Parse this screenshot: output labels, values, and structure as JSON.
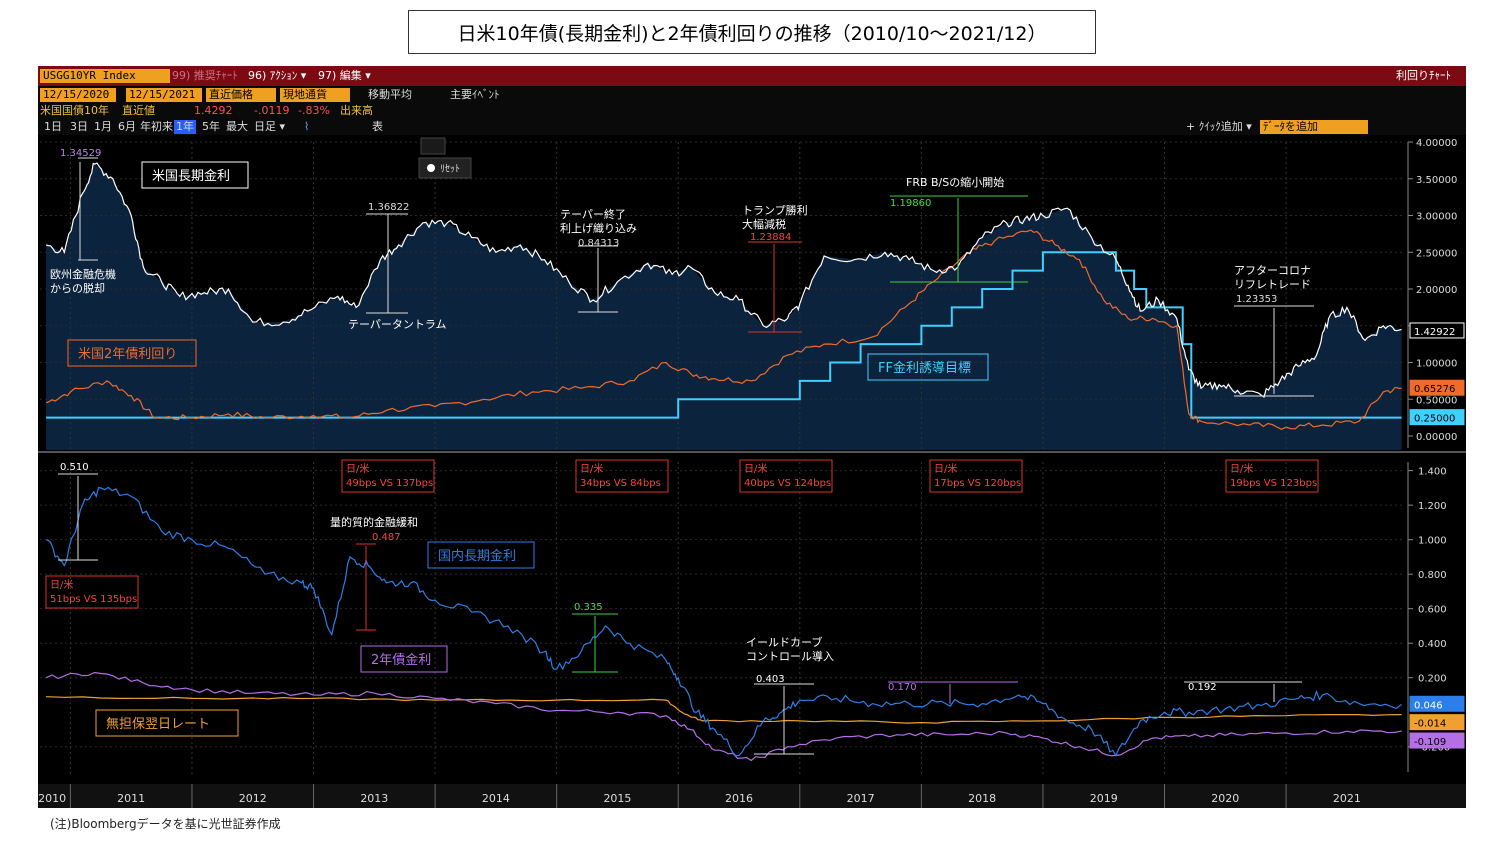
{
  "title": "日米10年債(長期金利)と2年債利回りの推移（2010/10～2021/12）",
  "footnote": "(注)Bloombergデータを基に光世証券作成",
  "toolbar": {
    "ticker": "USGG10YR Index",
    "menu1": "99) 推奨ﾁｬｰﾄ",
    "menu2": "96) ｱｸｼｮﾝ ▾",
    "menu3": "97) 編集 ▾",
    "right_title": "利回りﾁｬｰﾄ",
    "date_from": "12/15/2020",
    "date_to": "12/15/2021",
    "price_type": "直近価格",
    "currency": "現地通貨",
    "ma_label": "移動平均",
    "event_label": "主要ｲﾍﾞﾝﾄ",
    "sec_name": "米国国債10年",
    "last_label": "直近値",
    "last_value": "1.4292",
    "change": "-.0119",
    "change_pct": "-.83%",
    "volume_label": "出来高",
    "periods": [
      "1日",
      "3日",
      "1月",
      "6月",
      "年初来",
      "1年",
      "5年",
      "最大",
      "日足 ▾"
    ],
    "table_label": "表",
    "add_study": "+ ｸｲｯｸ追加 ▾",
    "add_data": "ﾃﾞｰﾀを追加",
    "reset": "ﾘｾｯﾄ"
  },
  "colors": {
    "us10": "#ffffff",
    "us2": "#f06a2a",
    "ff": "#3fd0ff",
    "jp10": "#2c7fe8",
    "jp2": "#b46ee6",
    "tona": "#f0a030",
    "bar": "#7b0a12",
    "area": "#0d2540"
  },
  "chart_data": [
    {
      "type": "line",
      "panel": "top",
      "ylim": [
        0,
        4
      ],
      "yticks": [
        "4.00000",
        "3.50000",
        "3.00000",
        "2.50000",
        "2.00000",
        "1.50000",
        "1.00000",
        "0.50000",
        "0.00000"
      ],
      "x_labels": [
        "2010",
        "2011",
        "2012",
        "2013",
        "2014",
        "2015",
        "2016",
        "2017",
        "2018",
        "2019",
        "2020",
        "2021"
      ],
      "series": [
        {
          "name": "米国長期金利",
          "color": "#ffffff",
          "x": [
            2010.8,
            2010.95,
            2011.1,
            2011.2,
            2011.35,
            2011.5,
            2011.6,
            2011.75,
            2011.9,
            2012.1,
            2012.3,
            2012.5,
            2012.75,
            2012.95,
            2013.2,
            2013.35,
            2013.55,
            2013.7,
            2013.9,
            2014.1,
            2014.3,
            2014.5,
            2014.7,
            2014.9,
            2015.1,
            2015.3,
            2015.5,
            2015.75,
            2015.95,
            2016.1,
            2016.3,
            2016.5,
            2016.7,
            2016.9,
            2017.0,
            2017.2,
            2017.45,
            2017.7,
            2017.9,
            2018.1,
            2018.3,
            2018.5,
            2018.7,
            2018.85,
            2019.0,
            2019.2,
            2019.4,
            2019.6,
            2019.7,
            2019.8,
            2019.95,
            2020.1,
            2020.2,
            2020.3,
            2020.45,
            2020.6,
            2020.8,
            2020.95,
            2021.1,
            2021.25,
            2021.35,
            2021.5,
            2021.65,
            2021.8,
            2021.95
          ],
          "y": [
            2.6,
            2.5,
            3.3,
            3.7,
            3.5,
            3.0,
            2.3,
            2.1,
            1.9,
            1.95,
            2.0,
            1.55,
            1.55,
            1.7,
            1.9,
            1.75,
            2.4,
            2.6,
            2.9,
            2.9,
            2.7,
            2.5,
            2.6,
            2.4,
            2.1,
            1.85,
            2.1,
            2.35,
            2.2,
            2.3,
            1.95,
            1.85,
            1.5,
            1.6,
            1.8,
            2.45,
            2.4,
            2.5,
            2.4,
            2.25,
            2.3,
            2.7,
            2.9,
            2.95,
            3.0,
            3.1,
            2.7,
            2.4,
            2.05,
            1.7,
            1.85,
            1.6,
            0.9,
            0.65,
            0.7,
            0.62,
            0.55,
            0.75,
            0.95,
            1.1,
            1.6,
            1.75,
            1.3,
            1.5,
            1.45
          ]
        },
        {
          "name": "米国2年債利回り",
          "color": "#f06a2a",
          "x": [
            2010.8,
            2011.0,
            2011.3,
            2011.5,
            2011.7,
            2012.0,
            2012.3,
            2012.6,
            2013.0,
            2013.3,
            2013.6,
            2014.0,
            2014.4,
            2014.8,
            2015.2,
            2015.6,
            2015.9,
            2016.1,
            2016.3,
            2016.6,
            2016.9,
            2017.2,
            2017.6,
            2017.9,
            2018.1,
            2018.4,
            2018.6,
            2018.9,
            2019.1,
            2019.3,
            2019.5,
            2019.7,
            2019.9,
            2020.1,
            2020.2,
            2020.3,
            2020.7,
            2021.0,
            2021.3,
            2021.6,
            2021.8,
            2021.95
          ],
          "y": [
            0.45,
            0.6,
            0.75,
            0.55,
            0.25,
            0.25,
            0.3,
            0.25,
            0.28,
            0.25,
            0.35,
            0.4,
            0.5,
            0.6,
            0.65,
            0.75,
            1.0,
            0.85,
            0.78,
            0.75,
            1.1,
            1.25,
            1.35,
            1.8,
            2.1,
            2.5,
            2.65,
            2.8,
            2.6,
            2.4,
            1.85,
            1.6,
            1.6,
            1.5,
            0.3,
            0.2,
            0.15,
            0.12,
            0.15,
            0.2,
            0.6,
            0.65
          ]
        },
        {
          "name": "FF金利誘導目標",
          "color": "#3fd0ff",
          "x": [
            2010.8,
            2016.0,
            2016.0,
            2017.0,
            2017.0,
            2017.25,
            2017.25,
            2017.5,
            2017.5,
            2018.0,
            2018.0,
            2018.25,
            2018.25,
            2018.5,
            2018.5,
            2018.75,
            2018.75,
            2019.0,
            2019.0,
            2019.6,
            2019.6,
            2019.75,
            2019.75,
            2019.85,
            2019.85,
            2020.15,
            2020.15,
            2020.22,
            2020.22,
            2021.95
          ],
          "y": [
            0.25,
            0.25,
            0.5,
            0.5,
            0.75,
            0.75,
            1.0,
            1.0,
            1.25,
            1.25,
            1.5,
            1.5,
            1.75,
            1.75,
            2.0,
            2.0,
            2.25,
            2.25,
            2.5,
            2.5,
            2.25,
            2.25,
            2.0,
            2.0,
            1.75,
            1.75,
            1.25,
            1.25,
            0.25,
            0.25
          ]
        }
      ]
    },
    {
      "type": "line",
      "panel": "bottom",
      "ylim": [
        -0.3,
        1.45
      ],
      "yticks": [
        "1.400",
        "1.200",
        "1.000",
        "0.800",
        "0.600",
        "0.400",
        "0.200",
        "-0.200"
      ],
      "series": [
        {
          "name": "国内長期金利",
          "color": "#2c7fe8",
          "x": [
            2010.8,
            2010.95,
            2011.1,
            2011.25,
            2011.5,
            2011.75,
            2012.0,
            2012.3,
            2012.6,
            2012.9,
            2013.0,
            2013.15,
            2013.3,
            2013.45,
            2013.6,
            2013.8,
            2014.0,
            2014.3,
            2014.6,
            2014.9,
            2015.0,
            2015.2,
            2015.4,
            2015.6,
            2015.9,
            2016.0,
            2016.15,
            2016.3,
            2016.5,
            2016.7,
            2016.85,
            2017.0,
            2017.3,
            2017.6,
            2017.9,
            2018.2,
            2018.5,
            2018.8,
            2019.0,
            2019.2,
            2019.4,
            2019.6,
            2019.8,
            2020.0,
            2020.2,
            2020.5,
            2020.8,
            2021.1,
            2021.3,
            2021.6,
            2021.95
          ],
          "y": [
            1.0,
            0.85,
            1.2,
            1.3,
            1.25,
            1.05,
            1.0,
            0.95,
            0.8,
            0.75,
            0.72,
            0.45,
            0.9,
            0.85,
            0.75,
            0.75,
            0.65,
            0.58,
            0.5,
            0.35,
            0.25,
            0.35,
            0.5,
            0.4,
            0.3,
            0.2,
            0.0,
            -0.1,
            -0.25,
            -0.05,
            0.0,
            0.07,
            0.08,
            0.05,
            0.05,
            0.05,
            0.05,
            0.1,
            0.05,
            -0.05,
            -0.1,
            -0.25,
            -0.05,
            0.0,
            0.0,
            0.02,
            0.04,
            0.08,
            0.1,
            0.05,
            0.046
          ]
        },
        {
          "name": "2年債金利",
          "color": "#b46ee6",
          "x": [
            2010.8,
            2011.2,
            2011.6,
            2012.0,
            2012.5,
            2013.0,
            2013.5,
            2014.0,
            2014.5,
            2015.0,
            2015.5,
            2015.9,
            2016.1,
            2016.3,
            2016.6,
            2016.9,
            2017.3,
            2017.8,
            2018.2,
            2018.7,
            2019.0,
            2019.3,
            2019.6,
            2019.9,
            2020.2,
            2020.6,
            2021.0,
            2021.5,
            2021.95
          ],
          "y": [
            0.2,
            0.23,
            0.17,
            0.13,
            0.11,
            0.1,
            0.11,
            0.08,
            0.05,
            0.01,
            0.0,
            -0.02,
            -0.1,
            -0.22,
            -0.28,
            -0.2,
            -0.15,
            -0.13,
            -0.13,
            -0.12,
            -0.15,
            -0.2,
            -0.25,
            -0.15,
            -0.14,
            -0.13,
            -0.12,
            -0.11,
            -0.109
          ]
        },
        {
          "name": "無担保翌日レート",
          "color": "#f0a030",
          "x": [
            2010.8,
            2012.0,
            2013.0,
            2014.0,
            2015.0,
            2015.9,
            2016.05,
            2016.2,
            2017.0,
            2018.0,
            2019.0,
            2020.0,
            2021.0,
            2021.95
          ],
          "y": [
            0.09,
            0.08,
            0.08,
            0.07,
            0.07,
            0.07,
            -0.01,
            -0.05,
            -0.05,
            -0.06,
            -0.05,
            -0.03,
            -0.02,
            -0.014
          ]
        }
      ]
    }
  ],
  "labels": {
    "us10": "米国長期金利",
    "us2": "米国2年債利回り",
    "ff": "FF金利誘導目標",
    "jp10": "国内長期金利",
    "jp2": "2年債金利",
    "tona": "無担保翌日レート",
    "ann1": "欧州金融危機",
    "ann1b": "からの脱却",
    "ann2": "テーパータントラム",
    "ann3": "テーパー終了",
    "ann3b": "利上げ織り込み",
    "ann4": "トランプ勝利",
    "ann4b": "大幅減税",
    "ann5": "FRB B/Sの縮小開始",
    "ann6": "アフターコロナ",
    "ann6b": "リフレトレード",
    "ann7": "量的質的金融緩和",
    "ann8": "イールドカーブ",
    "ann8b": "コントロール導入"
  },
  "values": {
    "v1": "1.34529",
    "v2": "1.36822",
    "v3": "0.84313",
    "v4": "1.23884",
    "v5": "1.19860",
    "v6": "1.23353",
    "b1": "0.510",
    "b2": "0.487",
    "b3": "0.335",
    "b4": "0.403",
    "b5": "0.170",
    "b6": "0.192",
    "last_us10": "1.42922",
    "last_us2": "0.65276",
    "last_ff": "0.25000",
    "last_jp10": "0.046",
    "last_tona": "-0.014",
    "last_jp2": "-0.109"
  },
  "spreads": [
    {
      "head": "日/米",
      "body": "51bps VS 135bps"
    },
    {
      "head": "日/米",
      "body": "49bps VS 137bps"
    },
    {
      "head": "日/米",
      "body": "34bps VS 84bps"
    },
    {
      "head": "日/米",
      "body": "40bps VS 124bps"
    },
    {
      "head": "日/米",
      "body": "17bps VS 120bps"
    },
    {
      "head": "日/米",
      "body": "19bps VS 123bps"
    }
  ]
}
